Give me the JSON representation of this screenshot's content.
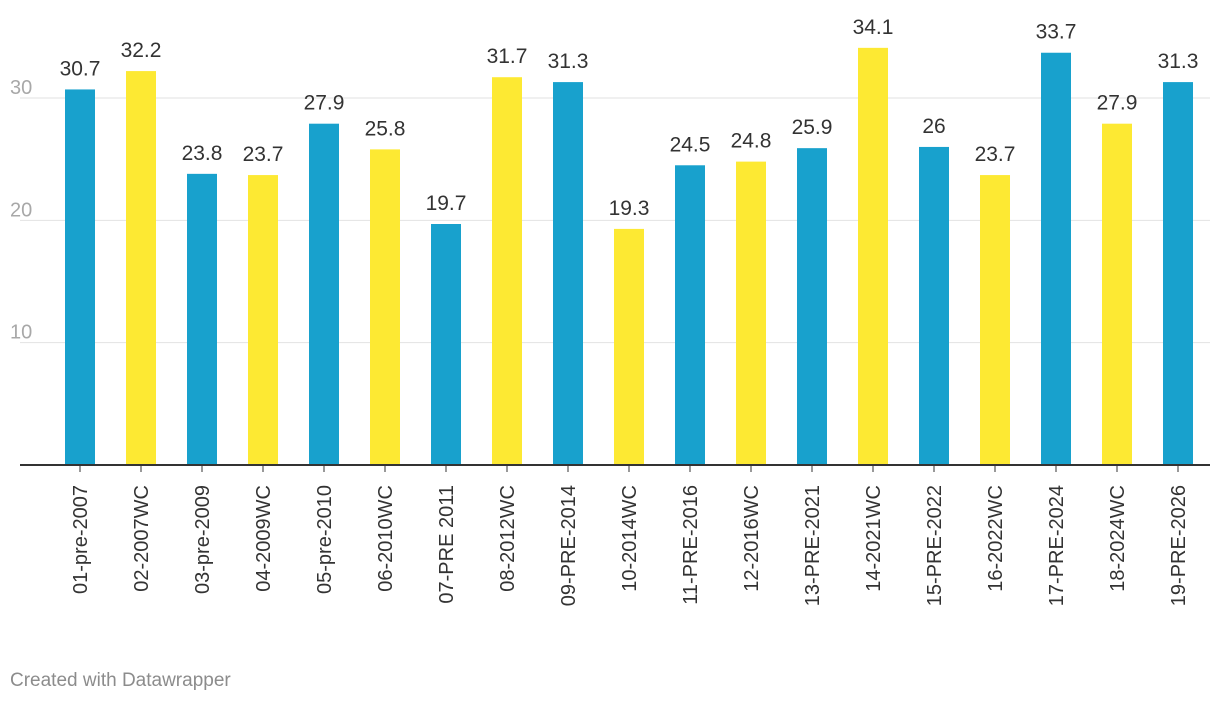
{
  "chart_data": {
    "type": "bar",
    "title": "",
    "xlabel": "",
    "ylabel": "",
    "ylim": [
      0,
      36
    ],
    "yticks": [
      10,
      20,
      30
    ],
    "grid": true,
    "categories": [
      "01-pre-2007",
      "02-2007WC",
      "03-pre-2009",
      "04-2009WC",
      "05-pre-2010",
      "06-2010WC",
      "07-PRE 2011",
      "08-2012WC",
      "09-PRE-2014",
      "10-2014WC",
      "11-PRE-2016",
      "12-2016WC",
      "13-PRE-2021",
      "14-2021WC",
      "15-PRE-2022",
      "16-2022WC",
      "17-PRE-2024",
      "18-2024WC",
      "19-PRE-2026"
    ],
    "values": [
      30.7,
      32.2,
      23.8,
      23.7,
      27.9,
      25.8,
      19.7,
      31.7,
      31.3,
      19.3,
      24.5,
      24.8,
      25.9,
      34.1,
      26,
      23.7,
      33.7,
      27.9,
      31.3
    ],
    "value_labels": [
      "30.7",
      "32.2",
      "23.8",
      "23.7",
      "27.9",
      "25.8",
      "19.7",
      "31.7",
      "31.3",
      "19.3",
      "24.5",
      "24.8",
      "25.9",
      "34.1",
      "26",
      "23.7",
      "33.7",
      "27.9",
      "31.3"
    ],
    "bar_colors": [
      "#18a1cd",
      "#fde933",
      "#18a1cd",
      "#fde933",
      "#18a1cd",
      "#fde933",
      "#18a1cd",
      "#fde933",
      "#18a1cd",
      "#fde933",
      "#18a1cd",
      "#fde933",
      "#18a1cd",
      "#fde933",
      "#18a1cd",
      "#fde933",
      "#18a1cd",
      "#fde933",
      "#18a1cd"
    ]
  },
  "footer": {
    "credit": "Created with Datawrapper"
  }
}
